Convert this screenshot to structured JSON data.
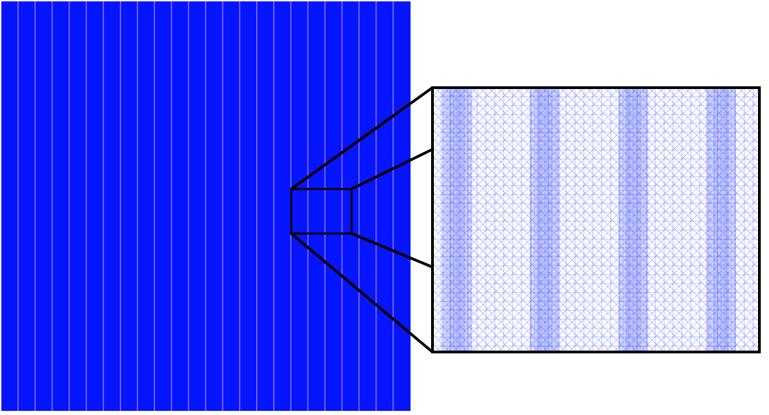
{
  "figure": {
    "background_color": "#ffffff",
    "domain_mesh": {
      "fill_color": "#0715ff",
      "refinement_stripe_color": "#c8a0ff",
      "refinement_stripe_count": 24
    },
    "zoom_inset": {
      "border_color": "#000000",
      "mesh_line_color": "#2a3cff",
      "dense_band_color": "#b4bcff",
      "dense_band_count": 4
    }
  }
}
